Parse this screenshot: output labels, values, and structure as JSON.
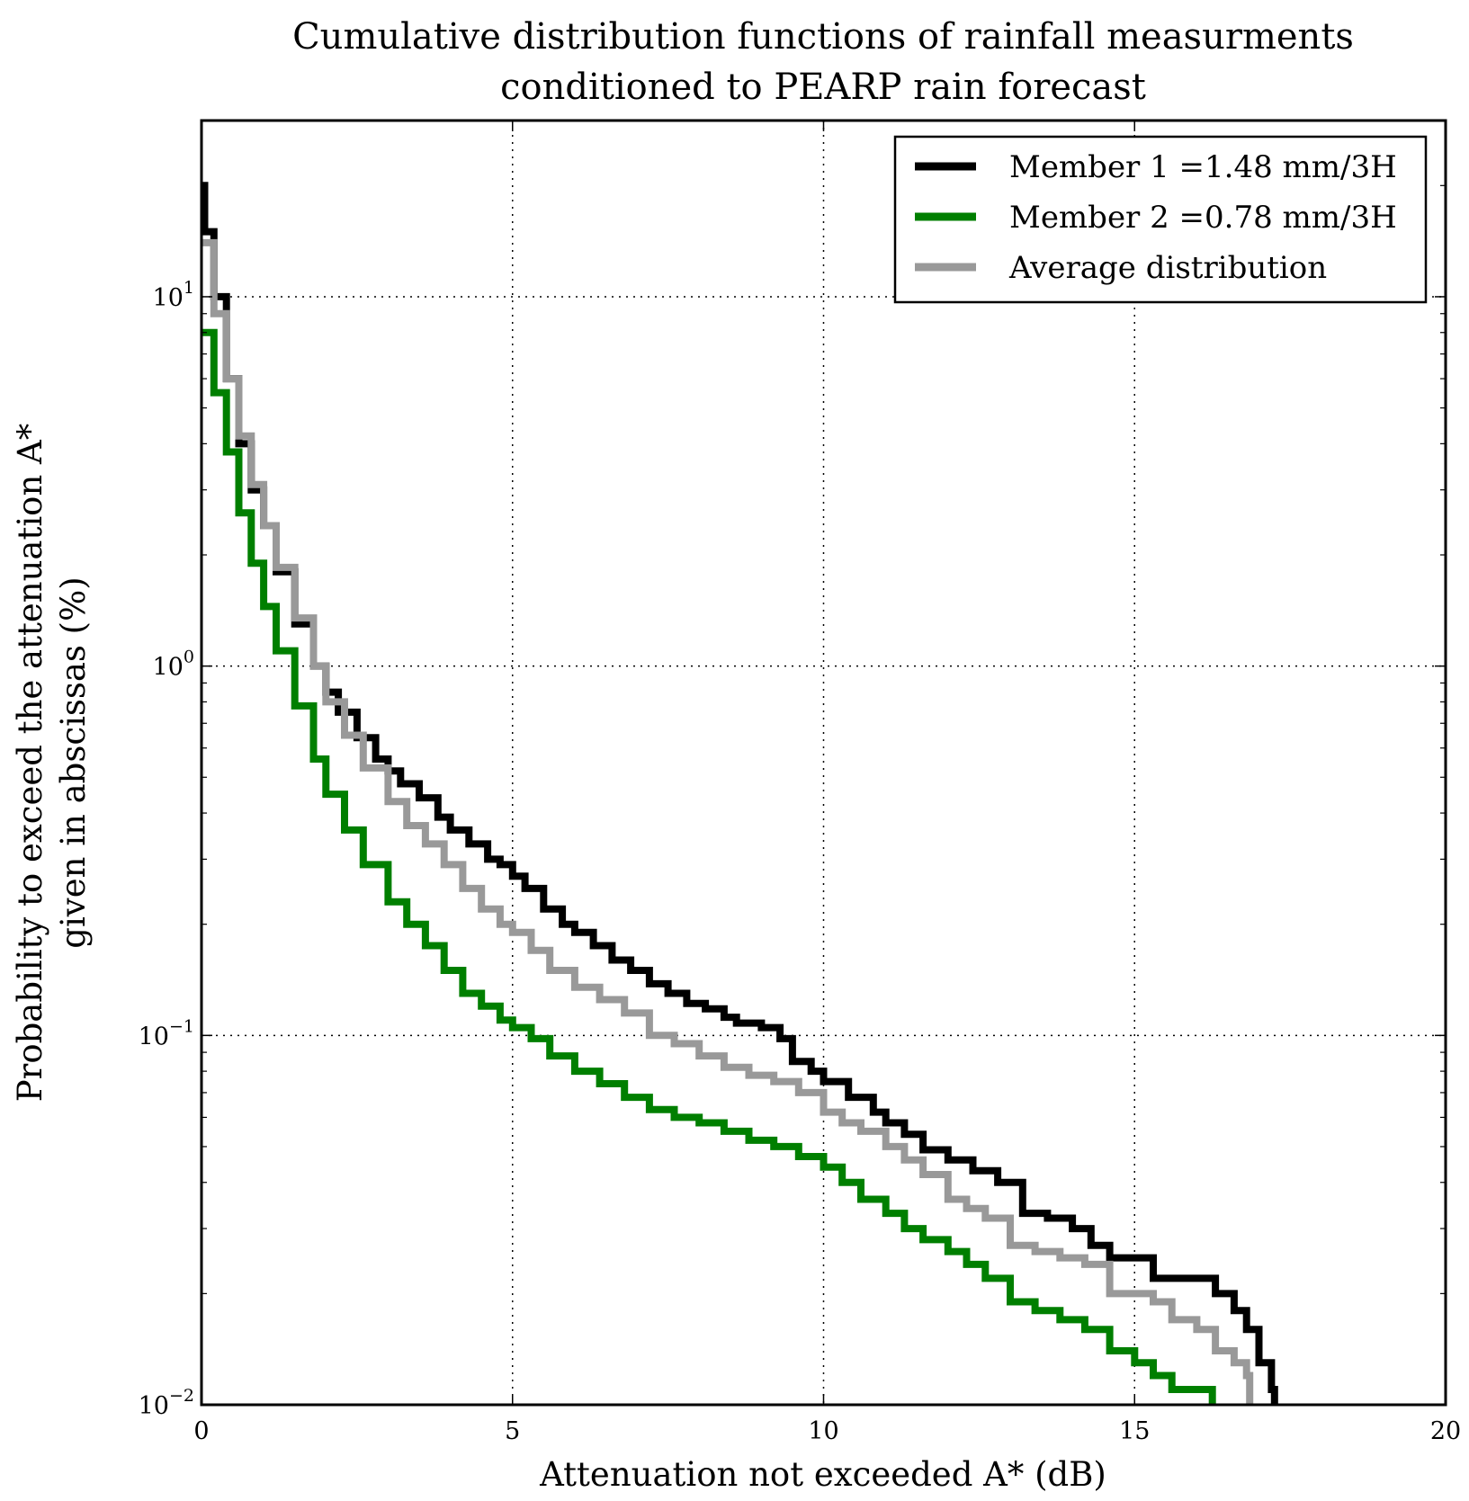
{
  "chart_data": {
    "type": "line",
    "title": [
      "Cumulative distribution functions of rainfall measurments",
      "conditioned to PEARP rain forecast"
    ],
    "xlabel": "Attenuation not exceeded A* (dB)",
    "ylabel": [
      "Probability to exceed the attenuation A*",
      "given in abscissas (%)"
    ],
    "xlim": [
      0,
      20
    ],
    "ylim": [
      0.01,
      30
    ],
    "yscale": "log",
    "grid": true,
    "legend_position": "top-right",
    "x_ticks": [
      {
        "value": 0,
        "label": "0"
      },
      {
        "value": 5,
        "label": "5"
      },
      {
        "value": 10,
        "label": "10"
      },
      {
        "value": 15,
        "label": "15"
      },
      {
        "value": 20,
        "label": "20"
      }
    ],
    "y_ticks": [
      {
        "value": 0.01,
        "base": "10",
        "exp": "−2"
      },
      {
        "value": 0.1,
        "base": "10",
        "exp": "−1"
      },
      {
        "value": 1,
        "base": "10",
        "exp": "0"
      },
      {
        "value": 10,
        "base": "10",
        "exp": "1"
      }
    ],
    "series": [
      {
        "name": "Member 1 =1.48 mm/3H",
        "color": "#000000",
        "x": [
          0.0,
          0.05,
          0.2,
          0.4,
          0.6,
          0.8,
          1.0,
          1.2,
          1.5,
          1.8,
          2.0,
          2.2,
          2.5,
          2.8,
          3.0,
          3.2,
          3.5,
          3.8,
          4.0,
          4.3,
          4.6,
          4.8,
          5.0,
          5.2,
          5.5,
          5.8,
          6.0,
          6.3,
          6.6,
          6.9,
          7.2,
          7.5,
          7.8,
          8.1,
          8.4,
          8.6,
          9.0,
          9.3,
          9.5,
          9.8,
          10.0,
          10.4,
          10.8,
          11.0,
          11.3,
          11.6,
          12.0,
          12.4,
          12.8,
          13.2,
          13.6,
          14.0,
          14.3,
          14.6,
          15.0,
          15.3,
          15.7,
          16.0,
          16.3,
          16.6,
          16.8,
          17.0,
          17.2,
          17.25
        ],
        "y": [
          20,
          15,
          10,
          6,
          4,
          3,
          2.4,
          1.8,
          1.3,
          1.0,
          0.85,
          0.75,
          0.64,
          0.56,
          0.52,
          0.48,
          0.44,
          0.39,
          0.36,
          0.33,
          0.3,
          0.29,
          0.27,
          0.25,
          0.22,
          0.2,
          0.19,
          0.175,
          0.16,
          0.15,
          0.138,
          0.13,
          0.122,
          0.118,
          0.112,
          0.108,
          0.105,
          0.098,
          0.085,
          0.08,
          0.075,
          0.068,
          0.062,
          0.058,
          0.054,
          0.049,
          0.046,
          0.043,
          0.04,
          0.033,
          0.032,
          0.03,
          0.027,
          0.025,
          0.025,
          0.022,
          0.022,
          0.022,
          0.02,
          0.018,
          0.016,
          0.013,
          0.011,
          0.01
        ]
      },
      {
        "name": "Member 2 =0.78 mm/3H",
        "color": "#007f00",
        "x": [
          0.0,
          0.2,
          0.4,
          0.6,
          0.8,
          1.0,
          1.2,
          1.5,
          1.8,
          2.0,
          2.3,
          2.6,
          3.0,
          3.3,
          3.6,
          3.9,
          4.2,
          4.5,
          4.8,
          5.0,
          5.3,
          5.6,
          6.0,
          6.4,
          6.8,
          7.2,
          7.6,
          8.0,
          8.4,
          8.8,
          9.2,
          9.6,
          10.0,
          10.3,
          10.6,
          11.0,
          11.3,
          11.6,
          12.0,
          12.3,
          12.6,
          13.0,
          13.4,
          13.8,
          14.2,
          14.6,
          15.0,
          15.3,
          15.6,
          16.0,
          16.2,
          16.25
        ],
        "y": [
          8,
          5.5,
          3.8,
          2.6,
          1.9,
          1.45,
          1.1,
          0.78,
          0.56,
          0.45,
          0.36,
          0.29,
          0.23,
          0.2,
          0.175,
          0.15,
          0.13,
          0.12,
          0.11,
          0.105,
          0.098,
          0.088,
          0.08,
          0.074,
          0.068,
          0.063,
          0.06,
          0.058,
          0.055,
          0.052,
          0.05,
          0.047,
          0.044,
          0.04,
          0.036,
          0.033,
          0.03,
          0.028,
          0.026,
          0.024,
          0.022,
          0.019,
          0.018,
          0.017,
          0.016,
          0.014,
          0.013,
          0.012,
          0.011,
          0.011,
          0.011,
          0.01
        ]
      },
      {
        "name": "Average distribution",
        "color": "#999999",
        "x": [
          0.0,
          0.2,
          0.4,
          0.6,
          0.8,
          1.0,
          1.2,
          1.5,
          1.8,
          2.0,
          2.3,
          2.6,
          3.0,
          3.3,
          3.6,
          3.9,
          4.2,
          4.5,
          4.8,
          5.0,
          5.3,
          5.6,
          6.0,
          6.4,
          6.8,
          7.2,
          7.6,
          8.0,
          8.4,
          8.8,
          9.2,
          9.6,
          10.0,
          10.3,
          10.6,
          11.0,
          11.3,
          11.6,
          12.0,
          12.3,
          12.6,
          13.0,
          13.4,
          13.8,
          14.2,
          14.6,
          15.0,
          15.3,
          15.6,
          16.0,
          16.3,
          16.6,
          16.8,
          16.85
        ],
        "y": [
          14,
          9,
          6,
          4.2,
          3.1,
          2.4,
          1.85,
          1.35,
          1.0,
          0.8,
          0.65,
          0.53,
          0.43,
          0.37,
          0.33,
          0.29,
          0.25,
          0.22,
          0.2,
          0.19,
          0.17,
          0.15,
          0.135,
          0.125,
          0.115,
          0.1,
          0.095,
          0.088,
          0.082,
          0.078,
          0.075,
          0.07,
          0.062,
          0.058,
          0.055,
          0.05,
          0.046,
          0.042,
          0.036,
          0.034,
          0.032,
          0.027,
          0.026,
          0.025,
          0.024,
          0.02,
          0.02,
          0.019,
          0.017,
          0.016,
          0.014,
          0.013,
          0.012,
          0.01
        ]
      }
    ]
  }
}
